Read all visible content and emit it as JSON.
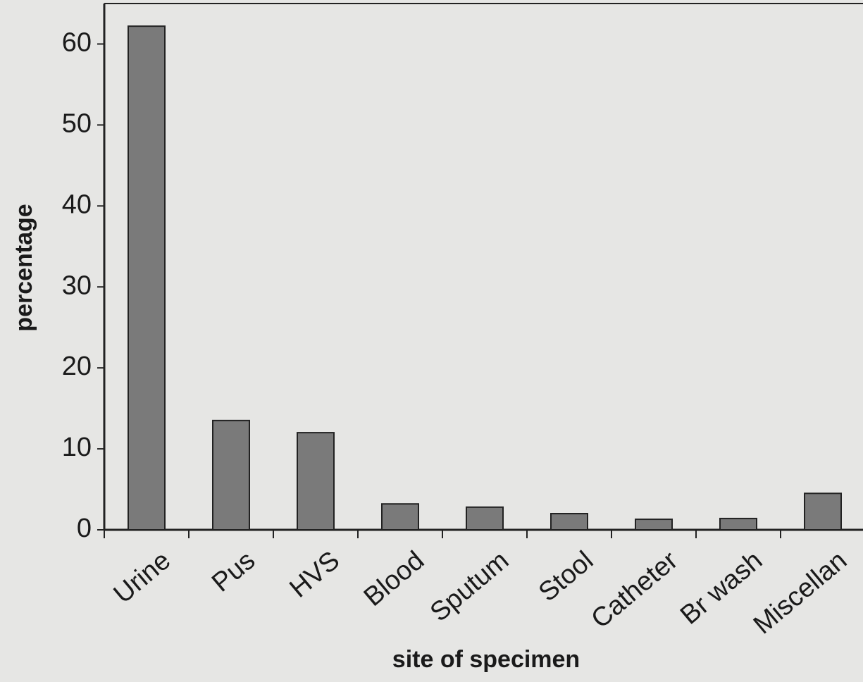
{
  "chart_data": {
    "type": "bar",
    "xlabel": "site of specimen",
    "ylabel": "percentage",
    "categories": [
      "Urine",
      "Pus",
      "HVS",
      "Blood",
      "Sputum",
      "Stool",
      "Catheter",
      "Br wash",
      "Miscellan"
    ],
    "values": [
      62.2,
      13.5,
      12,
      3.2,
      2.8,
      2,
      1.3,
      1.4,
      4.5
    ],
    "color": "#7a7a7a",
    "ylim": [
      0,
      65
    ],
    "yticks": [
      0,
      10,
      20,
      30,
      40,
      50,
      60
    ],
    "grid": false
  }
}
